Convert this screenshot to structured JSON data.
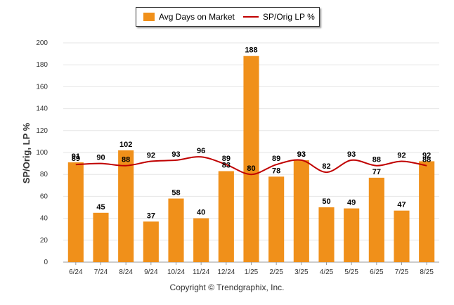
{
  "legend": {
    "bar_label": "Avg Days on Market",
    "line_label": "SP/Orig LP %"
  },
  "copyright": "Copyright © Trendgraphix, Inc.",
  "colors": {
    "bar": "#f0901a",
    "line": "#c00000",
    "grid": "#e6e6e6"
  },
  "chart_data": {
    "type": "bar",
    "ylabel": "SP/Orig, LP %",
    "xlabel": "",
    "ylim": [
      0,
      200
    ],
    "yticks": [
      0,
      20,
      40,
      60,
      80,
      100,
      120,
      140,
      160,
      180,
      200
    ],
    "grid": true,
    "legend_position": "top-center",
    "categories": [
      "6/24",
      "7/24",
      "8/24",
      "9/24",
      "10/24",
      "11/24",
      "12/24",
      "1/25",
      "2/25",
      "3/25",
      "4/25",
      "5/25",
      "6/25",
      "7/25",
      "8/25"
    ],
    "series": [
      {
        "name": "Avg Days on Market",
        "type": "bar",
        "values": [
          91,
          45,
          102,
          37,
          58,
          40,
          83,
          188,
          78,
          93,
          50,
          49,
          77,
          47,
          92
        ]
      },
      {
        "name": "SP/Orig LP %",
        "type": "line",
        "values": [
          89,
          90,
          88,
          92,
          93,
          96,
          89,
          80,
          89,
          93,
          82,
          93,
          88,
          92,
          88
        ]
      }
    ]
  }
}
